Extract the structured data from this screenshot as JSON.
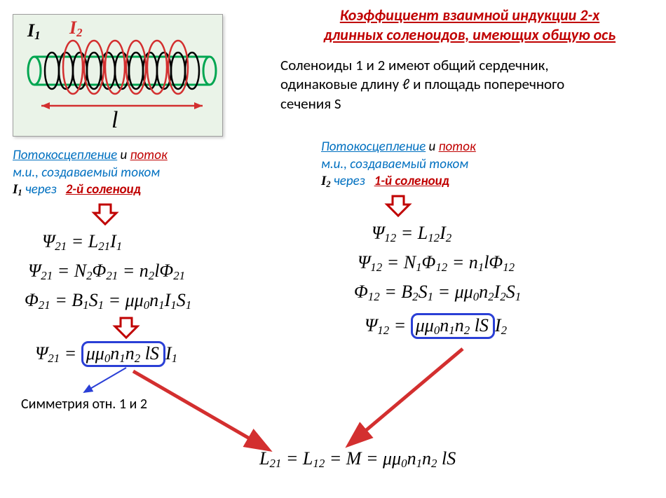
{
  "title": {
    "line1": "Коэффициент  взаимной индукции 2-х",
    "line2": "длинных соленоидов, имеющих общую ось",
    "color": "#c00000",
    "fontsize": 22
  },
  "intro": {
    "line1": "Соленоиды 1 и 2 имеют общий сердечник,",
    "line2": "одинаковые длину ℓ и площадь поперечного",
    "line3": "сечения  S",
    "fontsize": 21
  },
  "diagram": {
    "bg": "#eaf3e8",
    "border": "#9e9e9e",
    "core_stroke": "#00a651",
    "coil1_stroke": "#000000",
    "coil2_stroke": "#d32f2f",
    "arrow_color": "#d32f2f",
    "labels": {
      "I1": "I",
      "I1_sub": "1",
      "I2": "I",
      "I2_sub": "2",
      "l": "l"
    },
    "label_colors": {
      "I1": "#000000",
      "I2": "#d32f2f",
      "l": "#000000"
    }
  },
  "left_caption": {
    "a": "Потокосцепление",
    "a_color": "#0070c0",
    "b": "  и ",
    "c": "поток",
    "c_color": "#c00000",
    "d": "м.и., создаваемый током",
    "I": "I",
    "Isub": "1",
    "I_color": "#000000",
    "e": "через",
    "e_color": "#0070c0",
    "f": "2-й соленоид",
    "f_color": "#c00000",
    "fontsize": 19
  },
  "right_caption": {
    "a": "Потокосцепление",
    "a_color": "#0070c0",
    "b": "  и ",
    "c": "поток",
    "c_color": "#c00000",
    "d": "м.и., создаваемый током",
    "I": "I",
    "Isub": "2",
    "I_color": "#000000",
    "e": "через",
    "e_color": "#0070c0",
    "f": "1-й соленоид",
    "f_color": "#c00000",
    "fontsize": 19
  },
  "equations": {
    "L1": "Ψ<sub>21</sub> = L<sub>21</sub>I<sub>1</sub>",
    "L2": "Ψ<sub>21</sub> = N<sub>2</sub>Φ<sub>21</sub> = n<sub>2</sub>lΦ<sub>21</sub>",
    "L3": "Φ<sub>21</sub> = B<sub>1</sub>S<sub>1</sub> = μμ<sub>0</sub>n<sub>1</sub>I<sub>1</sub>S<sub>1</sub>",
    "L4_a": "Ψ<sub>21</sub> = ",
    "L4_box": "μμ<sub>0</sub>n<sub>1</sub>n<sub>2</sub> lS",
    "L4_b": "I<sub>1</sub>",
    "R1": "Ψ<sub>12</sub> = L<sub>12</sub>I<sub>2</sub>",
    "R2": "Ψ<sub>12</sub> = N<sub>1</sub>Φ<sub>12</sub> = n<sub>1</sub>lΦ<sub>12</sub>",
    "R3": "Φ<sub>12</sub> = B<sub>2</sub>S<sub>1</sub> = μμ<sub>0</sub>n<sub>2</sub>I<sub>2</sub>S<sub>1</sub>",
    "R4_a": "Ψ<sub>12</sub> = ",
    "R4_box": "μμ<sub>0</sub>n<sub>1</sub>n<sub>2</sub> lS",
    "R4_b": "I<sub>2</sub>",
    "final": "L<sub>21</sub> = L<sub>12</sub>  = M = μμ<sub>0</sub>n<sub>1</sub>n<sub>2</sub> lS",
    "fontsize": 24,
    "box_color": "#2a3fd6"
  },
  "symmetry_note": "Симметрия отн. 1 и 2",
  "arrows": {
    "down_stroke": "#c00000",
    "down_fill": "#ffffff",
    "big_stroke": "#d32f2f",
    "thin_blue": "#2a3fd6"
  }
}
